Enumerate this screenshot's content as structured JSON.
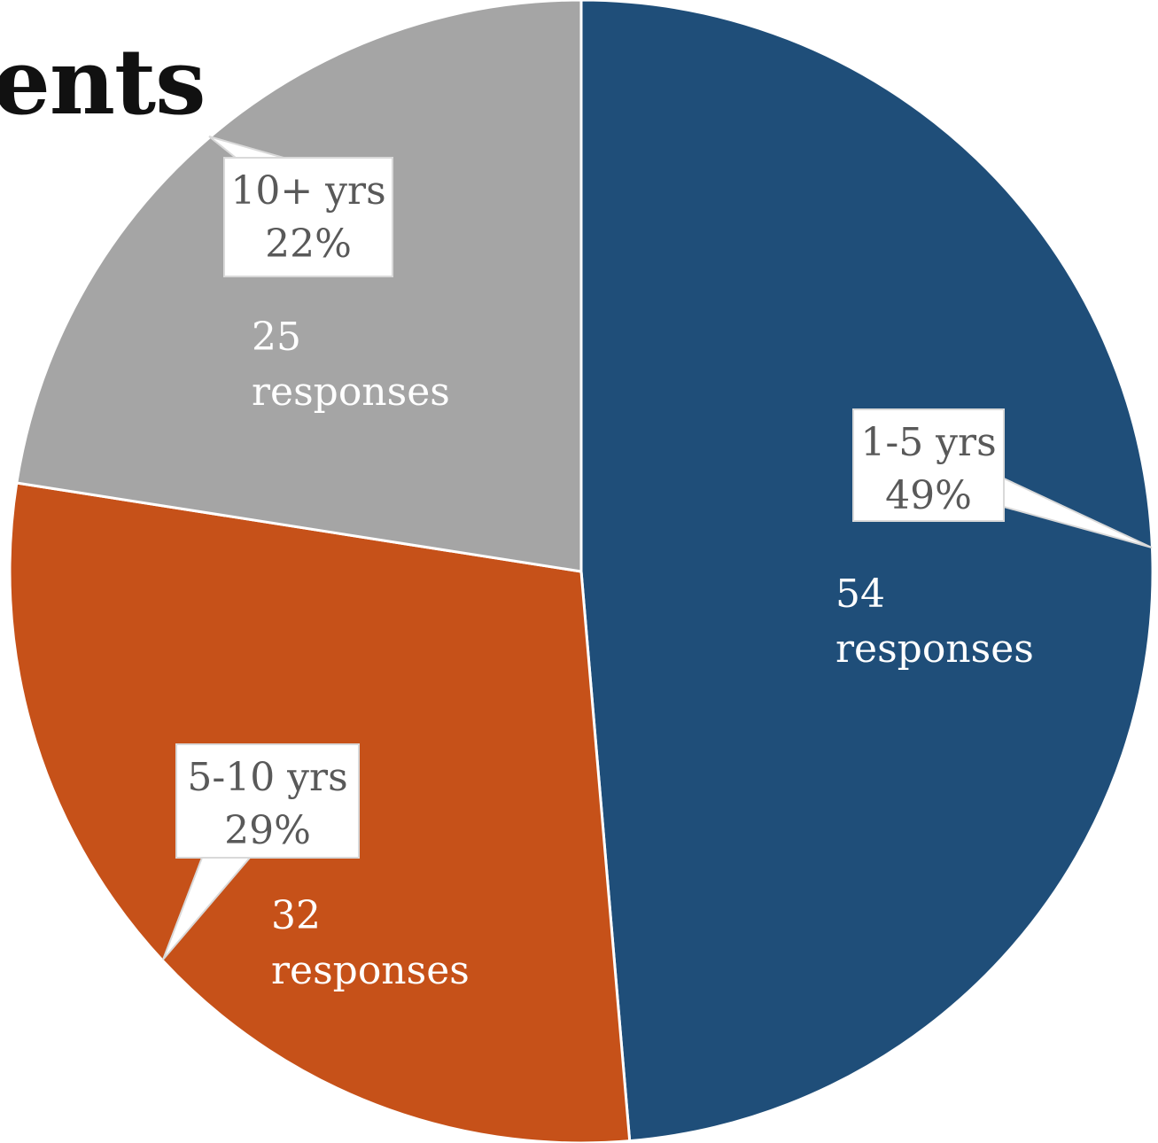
{
  "chart_data": {
    "type": "pie",
    "title": "ents",
    "slices": [
      {
        "label": "1-5 yrs",
        "percent_label": "49%",
        "count": 54,
        "value_text": "54",
        "unit_text": "responses",
        "color": "#1F4E79"
      },
      {
        "label": "5-10 yrs",
        "percent_label": "29%",
        "count": 32,
        "value_text": "32",
        "unit_text": "responses",
        "color": "#C65119"
      },
      {
        "label": "10+ yrs",
        "percent_label": "22%",
        "count": 25,
        "value_text": "25",
        "unit_text": "responses",
        "color": "#A5A5A5"
      }
    ],
    "start_angle_deg": 0,
    "direction": "clockwise",
    "slice_border_color": "#FFFFFF",
    "callout_text_color": "#595959",
    "value_text_color": "#FFFFFF"
  }
}
